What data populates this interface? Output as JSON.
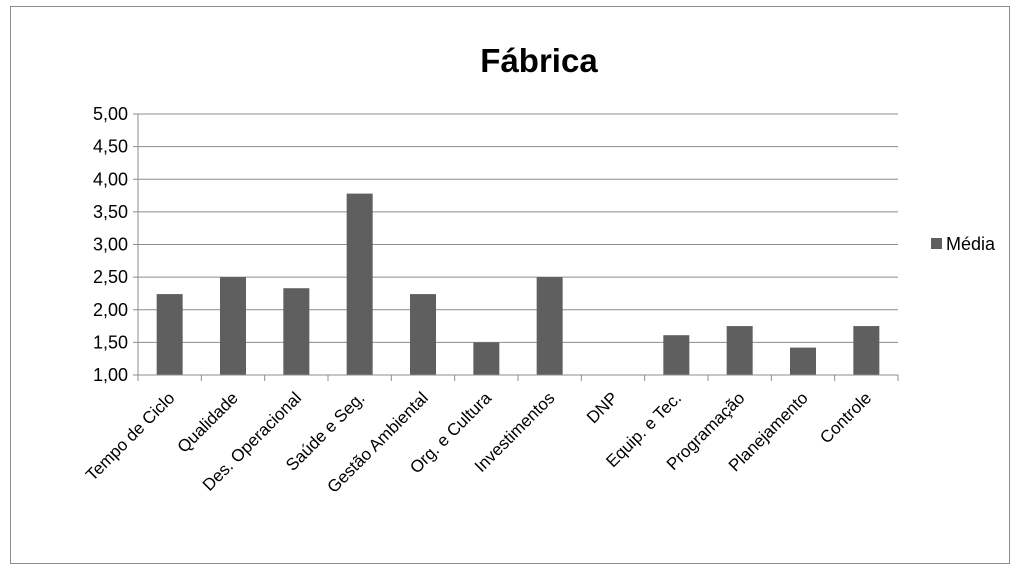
{
  "chart_data": {
    "type": "bar",
    "title": "Fábrica",
    "categories": [
      "Tempo de Ciclo",
      "Qualidade",
      "Des. Operacional",
      "Saúde e Seg.",
      "Gestão Ambiental",
      "Org. e Cultura",
      "Investimentos",
      "DNP",
      "Equip. e Tec.",
      "Programação",
      "Planejamento",
      "Controle"
    ],
    "series": [
      {
        "name": "Média",
        "values": [
          2.24,
          2.5,
          2.33,
          3.78,
          2.24,
          1.5,
          2.5,
          1.0,
          1.61,
          1.75,
          1.42,
          1.75
        ],
        "color": "#5f5f5f"
      }
    ],
    "ylim": [
      1.0,
      5.0
    ],
    "yticks": [
      "1,00",
      "1,50",
      "2,00",
      "2,50",
      "3,00",
      "3,50",
      "4,00",
      "4,50",
      "5,00"
    ],
    "grid": true,
    "legend_position": "right",
    "xlabel": "",
    "ylabel": ""
  }
}
